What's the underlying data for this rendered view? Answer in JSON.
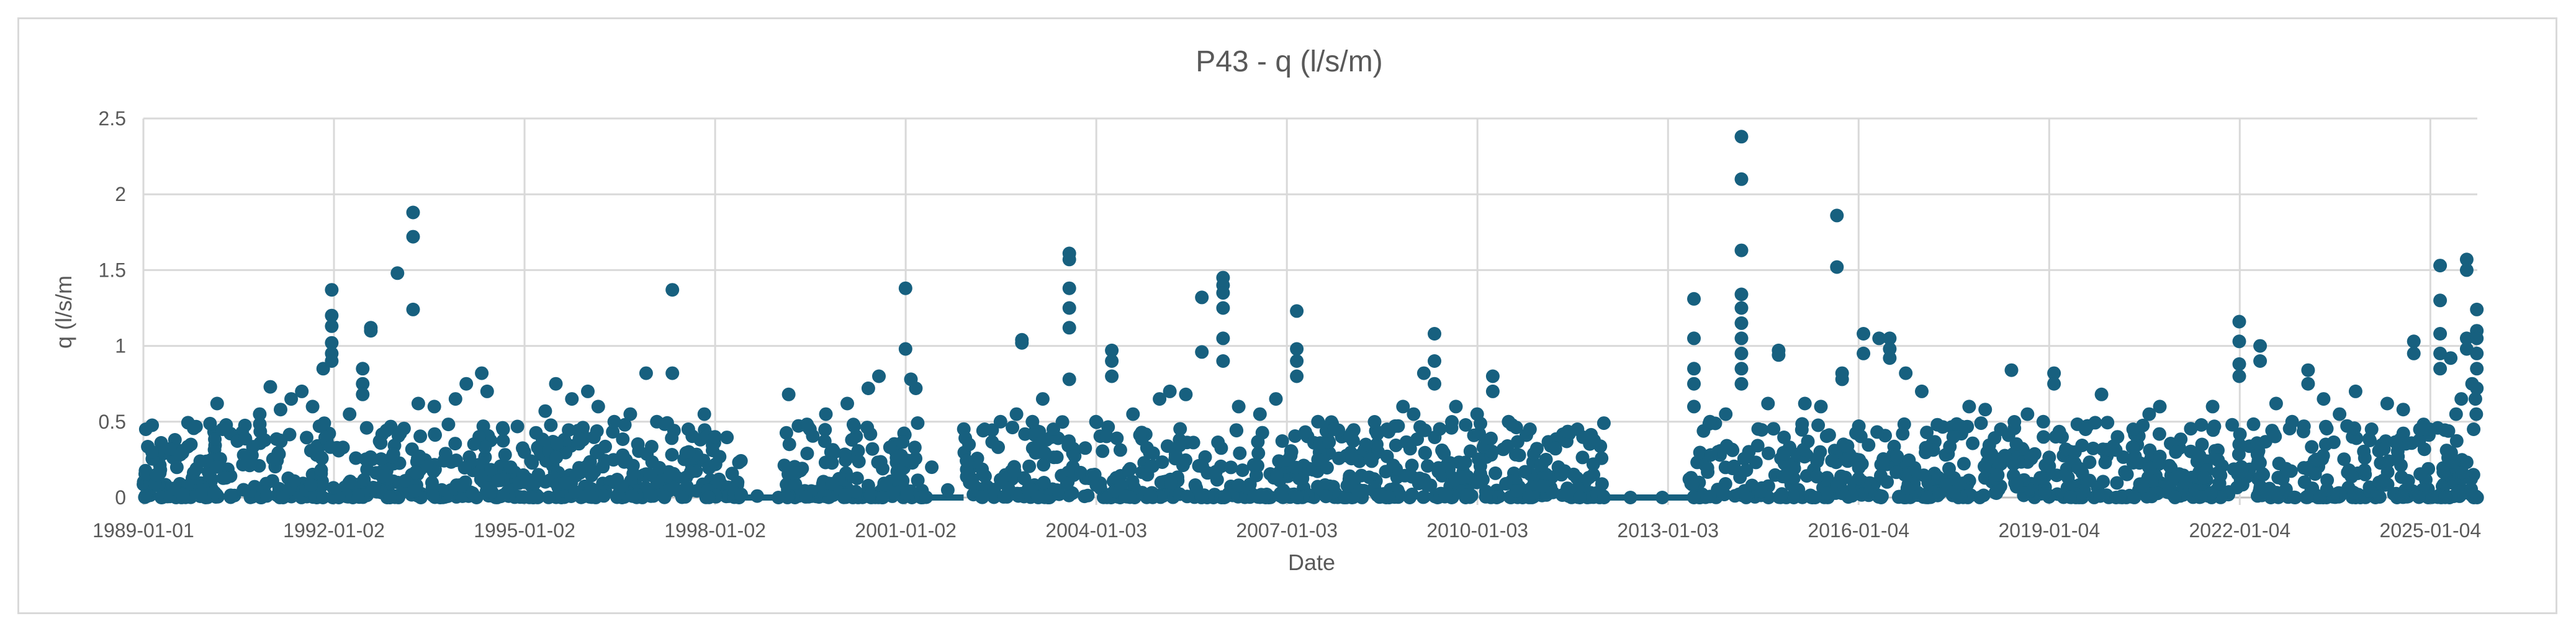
{
  "chart_data": {
    "type": "scatter",
    "title": "P43 - q (l/s/m)",
    "xlabel": "Date",
    "ylabel": "q (l/s/m",
    "ylim": [
      0,
      2.5
    ],
    "yticks": [
      "0",
      "0.5",
      "1",
      "1.5",
      "2",
      "2.5"
    ],
    "xlim": [
      "1989-01-01",
      "2025-10-01"
    ],
    "xticks": [
      "1989-01-01",
      "1992-01-02",
      "1995-01-02",
      "1998-01-02",
      "2001-01-02",
      "2004-01-03",
      "2007-01-03",
      "2010-01-03",
      "2013-01-03",
      "2016-01-04",
      "2019-01-04",
      "2022-01-04",
      "2025-01-04"
    ],
    "grid": true,
    "legend": "none",
    "marker_color": "#17607f",
    "series": [
      {
        "values": [
          [
            "1989-01-15",
            0.45
          ],
          [
            "1989-02-20",
            0.3
          ],
          [
            "1989-03-15",
            0.15
          ],
          [
            "1989-06-01",
            0.32
          ],
          [
            "1989-10-01",
            0.35
          ],
          [
            "1990-03-01",
            0.62
          ],
          [
            "1990-04-01",
            0.45
          ],
          [
            "1990-08-01",
            0.28
          ],
          [
            "1990-11-01",
            0.55
          ],
          [
            "1991-01-01",
            0.73
          ],
          [
            "1991-03-01",
            0.58
          ],
          [
            "1991-05-01",
            0.65
          ],
          [
            "1991-07-01",
            0.7
          ],
          [
            "1991-09-01",
            0.6
          ],
          [
            "1991-11-01",
            0.85
          ],
          [
            "1991-12-20",
            1.37
          ],
          [
            "1991-12-20",
            1.2
          ],
          [
            "1991-12-20",
            1.13
          ],
          [
            "1991-12-20",
            1.02
          ],
          [
            "1991-12-20",
            0.95
          ],
          [
            "1991-12-20",
            0.9
          ],
          [
            "1992-04-01",
            0.55
          ],
          [
            "1992-06-15",
            0.85
          ],
          [
            "1992-06-15",
            0.75
          ],
          [
            "1992-06-15",
            0.68
          ],
          [
            "1992-08-01",
            1.12
          ],
          [
            "1992-08-01",
            1.1
          ],
          [
            "1993-01-01",
            1.48
          ],
          [
            "1993-04-01",
            1.88
          ],
          [
            "1993-04-01",
            1.72
          ],
          [
            "1993-04-01",
            1.24
          ],
          [
            "1993-05-01",
            0.62
          ],
          [
            "1993-08-01",
            0.6
          ],
          [
            "1993-12-01",
            0.65
          ],
          [
            "1994-02-01",
            0.75
          ],
          [
            "1994-05-01",
            0.82
          ],
          [
            "1994-06-01",
            0.7
          ],
          [
            "1994-09-01",
            0.45
          ],
          [
            "1995-01-01",
            0.3
          ],
          [
            "1995-05-01",
            0.57
          ],
          [
            "1995-07-01",
            0.75
          ],
          [
            "1995-10-01",
            0.65
          ],
          [
            "1996-01-01",
            0.7
          ],
          [
            "1996-03-01",
            0.6
          ],
          [
            "1996-06-01",
            0.5
          ],
          [
            "1996-09-01",
            0.55
          ],
          [
            "1996-12-01",
            0.82
          ],
          [
            "1997-02-01",
            0.5
          ],
          [
            "1997-05-01",
            1.37
          ],
          [
            "1997-05-01",
            0.82
          ],
          [
            "1997-08-01",
            0.45
          ],
          [
            "1997-11-01",
            0.55
          ],
          [
            "1998-01-01",
            0.4
          ],
          [
            "1998-06-01",
            0.02
          ],
          [
            "1998-09-01",
            0.01
          ],
          [
            "1999-01-01",
            0.0
          ],
          [
            "1999-03-01",
            0.68
          ],
          [
            "1999-07-01",
            0.45
          ],
          [
            "1999-10-01",
            0.55
          ],
          [
            "2000-02-01",
            0.62
          ],
          [
            "2000-06-01",
            0.72
          ],
          [
            "2000-08-01",
            0.8
          ],
          [
            "2001-01-01",
            1.38
          ],
          [
            "2001-01-01",
            0.98
          ],
          [
            "2001-02-01",
            0.78
          ],
          [
            "2001-03-01",
            0.72
          ],
          [
            "2001-06-01",
            0.2
          ],
          [
            "2001-09-01",
            0.05
          ],
          [
            "2002-01-01",
            0.35
          ],
          [
            "2002-04-01",
            0.45
          ],
          [
            "2002-07-01",
            0.5
          ],
          [
            "2002-10-01",
            0.55
          ],
          [
            "2002-11-01",
            1.04
          ],
          [
            "2002-11-01",
            1.02
          ],
          [
            "2003-01-01",
            0.5
          ],
          [
            "2003-03-01",
            0.65
          ],
          [
            "2003-05-01",
            0.45
          ],
          [
            "2003-08-01",
            1.61
          ],
          [
            "2003-08-01",
            1.57
          ],
          [
            "2003-08-01",
            1.38
          ],
          [
            "2003-08-01",
            1.25
          ],
          [
            "2003-08-01",
            1.12
          ],
          [
            "2003-08-01",
            0.78
          ],
          [
            "2004-01-01",
            0.5
          ],
          [
            "2004-04-01",
            0.97
          ],
          [
            "2004-04-01",
            0.9
          ],
          [
            "2004-04-01",
            0.8
          ],
          [
            "2004-08-01",
            0.55
          ],
          [
            "2005-01-01",
            0.65
          ],
          [
            "2005-03-01",
            0.7
          ],
          [
            "2005-06-01",
            0.68
          ],
          [
            "2005-09-01",
            1.32
          ],
          [
            "2005-09-01",
            0.96
          ],
          [
            "2006-01-01",
            1.45
          ],
          [
            "2006-01-01",
            1.4
          ],
          [
            "2006-01-01",
            1.35
          ],
          [
            "2006-01-01",
            1.25
          ],
          [
            "2006-01-01",
            1.05
          ],
          [
            "2006-01-01",
            0.9
          ],
          [
            "2006-04-01",
            0.6
          ],
          [
            "2006-08-01",
            0.55
          ],
          [
            "2006-11-01",
            0.65
          ],
          [
            "2007-03-01",
            1.23
          ],
          [
            "2007-03-01",
            0.98
          ],
          [
            "2007-03-01",
            0.9
          ],
          [
            "2007-03-01",
            0.8
          ],
          [
            "2007-07-01",
            0.5
          ],
          [
            "2007-10-01",
            0.45
          ],
          [
            "2008-01-01",
            0.4
          ],
          [
            "2008-04-01",
            0.35
          ],
          [
            "2008-08-01",
            0.45
          ],
          [
            "2008-11-01",
            0.6
          ],
          [
            "2009-01-01",
            0.55
          ],
          [
            "2009-03-01",
            0.82
          ],
          [
            "2009-05-01",
            1.08
          ],
          [
            "2009-05-01",
            0.9
          ],
          [
            "2009-05-01",
            0.75
          ],
          [
            "2009-09-01",
            0.6
          ],
          [
            "2010-01-01",
            0.55
          ],
          [
            "2010-04-01",
            0.8
          ],
          [
            "2010-04-01",
            0.7
          ],
          [
            "2010-07-01",
            0.5
          ],
          [
            "2010-11-01",
            0.45
          ],
          [
            "2011-02-01",
            0.25
          ],
          [
            "2011-05-01",
            0.15
          ],
          [
            "2011-08-01",
            0.45
          ],
          [
            "2011-11-01",
            0.15
          ],
          [
            "2012-01-01",
            0.0
          ],
          [
            "2012-06-01",
            0.0
          ],
          [
            "2012-12-01",
            0.0
          ],
          [
            "2013-06-01",
            0.0
          ],
          [
            "2013-06-01",
            1.31
          ],
          [
            "2013-06-01",
            1.05
          ],
          [
            "2013-06-01",
            0.85
          ],
          [
            "2013-06-01",
            0.75
          ],
          [
            "2013-06-01",
            0.6
          ],
          [
            "2013-09-01",
            0.5
          ],
          [
            "2013-12-01",
            0.55
          ],
          [
            "2014-03-01",
            2.38
          ],
          [
            "2014-03-01",
            2.1
          ],
          [
            "2014-03-01",
            1.63
          ],
          [
            "2014-03-01",
            1.34
          ],
          [
            "2014-03-01",
            1.25
          ],
          [
            "2014-03-01",
            1.15
          ],
          [
            "2014-03-01",
            1.05
          ],
          [
            "2014-03-01",
            0.95
          ],
          [
            "2014-03-01",
            0.85
          ],
          [
            "2014-03-01",
            0.75
          ],
          [
            "2014-08-01",
            0.62
          ],
          [
            "2014-10-01",
            0.97
          ],
          [
            "2014-10-01",
            0.94
          ],
          [
            "2015-03-01",
            0.62
          ],
          [
            "2015-06-01",
            0.6
          ],
          [
            "2015-09-01",
            1.86
          ],
          [
            "2015-09-01",
            1.52
          ],
          [
            "2015-10-01",
            0.82
          ],
          [
            "2015-10-01",
            0.78
          ],
          [
            "2016-02-01",
            1.08
          ],
          [
            "2016-02-01",
            0.95
          ],
          [
            "2016-05-01",
            1.05
          ],
          [
            "2016-07-01",
            1.05
          ],
          [
            "2016-07-01",
            0.98
          ],
          [
            "2016-07-01",
            0.92
          ],
          [
            "2016-10-01",
            0.82
          ],
          [
            "2017-01-01",
            0.7
          ],
          [
            "2017-04-01",
            0.48
          ],
          [
            "2017-07-01",
            0.4
          ],
          [
            "2017-10-01",
            0.6
          ],
          [
            "2018-01-01",
            0.58
          ],
          [
            "2018-04-01",
            0.45
          ],
          [
            "2018-06-01",
            0.84
          ],
          [
            "2018-09-01",
            0.55
          ],
          [
            "2018-12-01",
            0.5
          ],
          [
            "2019-02-01",
            0.82
          ],
          [
            "2019-02-01",
            0.75
          ],
          [
            "2019-06-01",
            0.3
          ],
          [
            "2019-08-01",
            0.45
          ],
          [
            "2019-11-01",
            0.68
          ],
          [
            "2020-02-01",
            0.4
          ],
          [
            "2020-05-01",
            0.45
          ],
          [
            "2020-08-01",
            0.55
          ],
          [
            "2020-10-01",
            0.6
          ],
          [
            "2021-01-01",
            0.3
          ],
          [
            "2021-03-01",
            0.1
          ],
          [
            "2021-06-01",
            0.35
          ],
          [
            "2021-08-01",
            0.6
          ],
          [
            "2022-01-01",
            1.16
          ],
          [
            "2022-01-01",
            1.03
          ],
          [
            "2022-01-01",
            0.88
          ],
          [
            "2022-01-01",
            0.8
          ],
          [
            "2022-05-01",
            1.0
          ],
          [
            "2022-05-01",
            0.9
          ],
          [
            "2022-08-01",
            0.62
          ],
          [
            "2022-11-01",
            0.5
          ],
          [
            "2023-02-01",
            0.84
          ],
          [
            "2023-02-01",
            0.75
          ],
          [
            "2023-05-01",
            0.65
          ],
          [
            "2023-08-01",
            0.55
          ],
          [
            "2023-11-01",
            0.7
          ],
          [
            "2024-02-01",
            0.45
          ],
          [
            "2024-05-01",
            0.62
          ],
          [
            "2024-08-01",
            0.58
          ],
          [
            "2024-10-01",
            1.03
          ],
          [
            "2024-10-01",
            0.95
          ],
          [
            "2025-01-01",
            0.45
          ],
          [
            "2025-03-01",
            1.53
          ],
          [
            "2025-03-01",
            1.3
          ],
          [
            "2025-03-01",
            1.08
          ],
          [
            "2025-03-01",
            0.95
          ],
          [
            "2025-03-01",
            0.85
          ],
          [
            "2025-05-01",
            0.92
          ],
          [
            "2025-06-01",
            0.55
          ],
          [
            "2025-07-01",
            0.65
          ],
          [
            "2025-08-01",
            1.57
          ],
          [
            "2025-08-01",
            1.5
          ],
          [
            "2025-08-01",
            1.05
          ],
          [
            "2025-08-01",
            0.98
          ],
          [
            "2025-09-01",
            0.75
          ],
          [
            "2025-09-10",
            0.45
          ],
          [
            "2025-09-20",
            0.65
          ],
          [
            "2025-09-25",
            0.55
          ],
          [
            "2025-09-28",
            1.24
          ],
          [
            "2025-09-28",
            1.1
          ],
          [
            "2025-09-28",
            1.05
          ],
          [
            "2025-09-28",
            0.95
          ],
          [
            "2025-09-28",
            0.85
          ],
          [
            "2025-09-28",
            0.72
          ],
          [
            "2025-09-30",
            0.0
          ]
        ]
      }
    ]
  }
}
